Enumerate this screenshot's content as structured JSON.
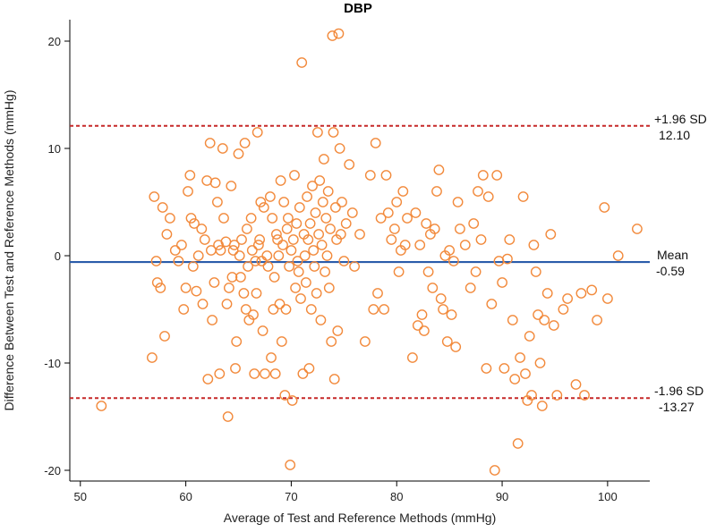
{
  "chart_data": {
    "type": "scatter",
    "title": "DBP",
    "xlabel": "Average of Test and Reference Methods (mmHg)",
    "ylabel": "Difference Between Test and Reference Methods (mmHg)",
    "xlim": [
      49,
      104
    ],
    "ylim": [
      -21,
      22
    ],
    "xticks": [
      50,
      60,
      70,
      80,
      90,
      100
    ],
    "yticks": [
      -20,
      -10,
      0,
      10,
      20
    ],
    "grid": false,
    "marker": "open-circle",
    "colors": {
      "points": "#f28a3c",
      "mean_line": "#2a5caa",
      "sd_lines": "#c62828",
      "axis": "#000000"
    },
    "reference_lines": [
      {
        "name": "upper-loa",
        "y": 12.1,
        "style": "dashed",
        "label": "+1.96 SD",
        "value_label": "12.10"
      },
      {
        "name": "mean",
        "y": -0.59,
        "style": "solid",
        "label": "Mean",
        "value_label": "-0.59"
      },
      {
        "name": "lower-loa",
        "y": -13.27,
        "style": "dashed",
        "label": "-1.96 SD",
        "value_label": "-13.27"
      }
    ],
    "points": [
      [
        52.0,
        -14.0
      ],
      [
        56.8,
        -9.5
      ],
      [
        57.0,
        5.5
      ],
      [
        57.2,
        -0.5
      ],
      [
        57.3,
        -2.5
      ],
      [
        57.6,
        -3.0
      ],
      [
        57.8,
        4.5
      ],
      [
        58.0,
        -7.5
      ],
      [
        58.2,
        2.0
      ],
      [
        58.5,
        3.5
      ],
      [
        59.0,
        0.5
      ],
      [
        59.3,
        -0.5
      ],
      [
        59.6,
        1.0
      ],
      [
        59.8,
        -5.0
      ],
      [
        60.0,
        -3.0
      ],
      [
        60.2,
        6.0
      ],
      [
        60.4,
        7.5
      ],
      [
        60.5,
        3.5
      ],
      [
        60.7,
        -1.0
      ],
      [
        60.8,
        3.0
      ],
      [
        61.0,
        -3.3
      ],
      [
        61.2,
        0.0
      ],
      [
        61.5,
        2.5
      ],
      [
        61.6,
        -4.5
      ],
      [
        61.8,
        1.5
      ],
      [
        62.0,
        7.0
      ],
      [
        62.1,
        -11.5
      ],
      [
        62.3,
        10.5
      ],
      [
        62.4,
        0.5
      ],
      [
        62.5,
        -6.0
      ],
      [
        62.7,
        -2.5
      ],
      [
        62.8,
        6.8
      ],
      [
        63.0,
        5.0
      ],
      [
        63.1,
        1.0
      ],
      [
        63.2,
        -11.0
      ],
      [
        63.3,
        0.5
      ],
      [
        63.5,
        10.0
      ],
      [
        63.6,
        3.5
      ],
      [
        63.8,
        1.3
      ],
      [
        63.9,
        -4.5
      ],
      [
        64.0,
        -15.0
      ],
      [
        64.1,
        -3.0
      ],
      [
        64.3,
        6.5
      ],
      [
        64.4,
        -2.0
      ],
      [
        64.5,
        0.5
      ],
      [
        64.6,
        1.0
      ],
      [
        64.7,
        -10.5
      ],
      [
        64.8,
        -8.0
      ],
      [
        65.0,
        9.5
      ],
      [
        65.1,
        0.0
      ],
      [
        65.2,
        -2.0
      ],
      [
        65.3,
        1.5
      ],
      [
        65.5,
        -3.5
      ],
      [
        65.6,
        10.5
      ],
      [
        65.7,
        -5.0
      ],
      [
        65.8,
        2.5
      ],
      [
        65.9,
        -1.0
      ],
      [
        66.0,
        -6.0
      ],
      [
        66.2,
        3.5
      ],
      [
        66.3,
        0.5
      ],
      [
        66.4,
        -5.5
      ],
      [
        66.5,
        -11.0
      ],
      [
        66.6,
        -0.5
      ],
      [
        66.7,
        -3.5
      ],
      [
        66.8,
        11.5
      ],
      [
        66.9,
        1.0
      ],
      [
        67.0,
        1.5
      ],
      [
        67.1,
        5.0
      ],
      [
        67.2,
        -0.5
      ],
      [
        67.3,
        -7.0
      ],
      [
        67.4,
        4.5
      ],
      [
        67.5,
        -11.0
      ],
      [
        67.7,
        0.0
      ],
      [
        67.8,
        -1.0
      ],
      [
        68.0,
        5.5
      ],
      [
        68.1,
        -9.5
      ],
      [
        68.2,
        3.5
      ],
      [
        68.3,
        -5.0
      ],
      [
        68.4,
        -2.0
      ],
      [
        68.5,
        -11.0
      ],
      [
        68.6,
        2.0
      ],
      [
        68.7,
        1.5
      ],
      [
        68.8,
        0.0
      ],
      [
        68.9,
        -4.5
      ],
      [
        69.0,
        7.0
      ],
      [
        69.1,
        -8.0
      ],
      [
        69.2,
        1.0
      ],
      [
        69.3,
        5.0
      ],
      [
        69.4,
        -13.0
      ],
      [
        69.5,
        -5.0
      ],
      [
        69.6,
        2.5
      ],
      [
        69.7,
        3.5
      ],
      [
        69.8,
        -1.0
      ],
      [
        69.9,
        -19.5
      ],
      [
        70.0,
        0.5
      ],
      [
        70.1,
        -13.5
      ],
      [
        70.2,
        1.5
      ],
      [
        70.3,
        7.5
      ],
      [
        70.4,
        -3.0
      ],
      [
        70.5,
        3.0
      ],
      [
        70.6,
        -0.5
      ],
      [
        70.7,
        -1.5
      ],
      [
        70.8,
        4.5
      ],
      [
        70.9,
        -4.0
      ],
      [
        71.0,
        18.0
      ],
      [
        71.1,
        -11.0
      ],
      [
        71.2,
        2.0
      ],
      [
        71.3,
        0.0
      ],
      [
        71.4,
        -2.5
      ],
      [
        71.5,
        5.5
      ],
      [
        71.6,
        1.5
      ],
      [
        71.7,
        -10.5
      ],
      [
        71.8,
        3.0
      ],
      [
        71.9,
        -5.0
      ],
      [
        72.0,
        6.5
      ],
      [
        72.1,
        0.5
      ],
      [
        72.2,
        -1.0
      ],
      [
        72.3,
        4.0
      ],
      [
        72.4,
        -3.5
      ],
      [
        72.5,
        11.5
      ],
      [
        72.6,
        2.0
      ],
      [
        72.7,
        7.0
      ],
      [
        72.8,
        -6.0
      ],
      [
        72.9,
        1.0
      ],
      [
        73.0,
        5.0
      ],
      [
        73.1,
        9.0
      ],
      [
        73.2,
        -1.5
      ],
      [
        73.3,
        3.5
      ],
      [
        73.4,
        0.0
      ],
      [
        73.5,
        6.0
      ],
      [
        73.6,
        -3.0
      ],
      [
        73.7,
        2.5
      ],
      [
        73.8,
        -8.0
      ],
      [
        73.9,
        20.5
      ],
      [
        74.0,
        11.5
      ],
      [
        74.1,
        -11.5
      ],
      [
        74.2,
        4.5
      ],
      [
        74.3,
        1.5
      ],
      [
        74.4,
        -7.0
      ],
      [
        74.5,
        20.7
      ],
      [
        74.6,
        10.0
      ],
      [
        74.7,
        2.0
      ],
      [
        74.8,
        5.0
      ],
      [
        75.0,
        -0.5
      ],
      [
        75.2,
        3.0
      ],
      [
        75.5,
        8.5
      ],
      [
        75.8,
        4.0
      ],
      [
        76.0,
        -1.0
      ],
      [
        76.5,
        2.0
      ],
      [
        77.0,
        -8.0
      ],
      [
        77.5,
        7.5
      ],
      [
        77.8,
        -5.0
      ],
      [
        78.0,
        10.5
      ],
      [
        78.2,
        -3.5
      ],
      [
        78.5,
        3.5
      ],
      [
        78.8,
        -5.0
      ],
      [
        79.0,
        7.5
      ],
      [
        79.2,
        4.0
      ],
      [
        79.5,
        1.5
      ],
      [
        79.8,
        2.5
      ],
      [
        80.0,
        5.0
      ],
      [
        80.2,
        -1.5
      ],
      [
        80.4,
        0.5
      ],
      [
        80.6,
        6.0
      ],
      [
        80.8,
        1.0
      ],
      [
        81.0,
        3.5
      ],
      [
        81.5,
        -9.5
      ],
      [
        81.8,
        4.0
      ],
      [
        82.0,
        -6.5
      ],
      [
        82.2,
        1.0
      ],
      [
        82.4,
        -5.5
      ],
      [
        82.6,
        -7.0
      ],
      [
        82.8,
        3.0
      ],
      [
        83.0,
        -1.5
      ],
      [
        83.2,
        2.0
      ],
      [
        83.4,
        -3.0
      ],
      [
        83.6,
        2.5
      ],
      [
        83.8,
        6.0
      ],
      [
        84.0,
        8.0
      ],
      [
        84.2,
        -4.0
      ],
      [
        84.4,
        -5.0
      ],
      [
        84.6,
        0.0
      ],
      [
        84.8,
        -8.0
      ],
      [
        85.0,
        0.5
      ],
      [
        85.2,
        -5.5
      ],
      [
        85.4,
        -0.5
      ],
      [
        85.6,
        -8.5
      ],
      [
        85.8,
        5.0
      ],
      [
        86.0,
        2.5
      ],
      [
        86.5,
        1.0
      ],
      [
        87.0,
        -3.0
      ],
      [
        87.3,
        3.0
      ],
      [
        87.5,
        -1.5
      ],
      [
        87.7,
        6.0
      ],
      [
        88.0,
        1.5
      ],
      [
        88.2,
        7.5
      ],
      [
        88.5,
        -10.5
      ],
      [
        88.7,
        5.5
      ],
      [
        89.0,
        -4.5
      ],
      [
        89.3,
        -20.0
      ],
      [
        89.5,
        7.5
      ],
      [
        89.7,
        -0.5
      ],
      [
        90.0,
        -2.5
      ],
      [
        90.2,
        -10.5
      ],
      [
        90.5,
        -0.3
      ],
      [
        90.7,
        1.5
      ],
      [
        91.0,
        -6.0
      ],
      [
        91.2,
        -11.5
      ],
      [
        91.5,
        -17.5
      ],
      [
        91.7,
        -9.5
      ],
      [
        92.0,
        5.5
      ],
      [
        92.2,
        -11.0
      ],
      [
        92.4,
        -13.5
      ],
      [
        92.6,
        -7.5
      ],
      [
        92.8,
        -13.0
      ],
      [
        93.0,
        1.0
      ],
      [
        93.2,
        -1.5
      ],
      [
        93.4,
        -5.5
      ],
      [
        93.6,
        -10.0
      ],
      [
        93.8,
        -14.0
      ],
      [
        94.0,
        -6.0
      ],
      [
        94.3,
        -3.5
      ],
      [
        94.6,
        2.0
      ],
      [
        94.9,
        -6.5
      ],
      [
        95.2,
        -13.0
      ],
      [
        95.8,
        -5.0
      ],
      [
        96.2,
        -4.0
      ],
      [
        97.0,
        -12.0
      ],
      [
        97.5,
        -3.5
      ],
      [
        97.8,
        -13.0
      ],
      [
        98.5,
        -3.2
      ],
      [
        99.0,
        -6.0
      ],
      [
        99.7,
        4.5
      ],
      [
        100.0,
        -4.0
      ],
      [
        101.0,
        0.0
      ],
      [
        102.8,
        2.5
      ]
    ]
  }
}
